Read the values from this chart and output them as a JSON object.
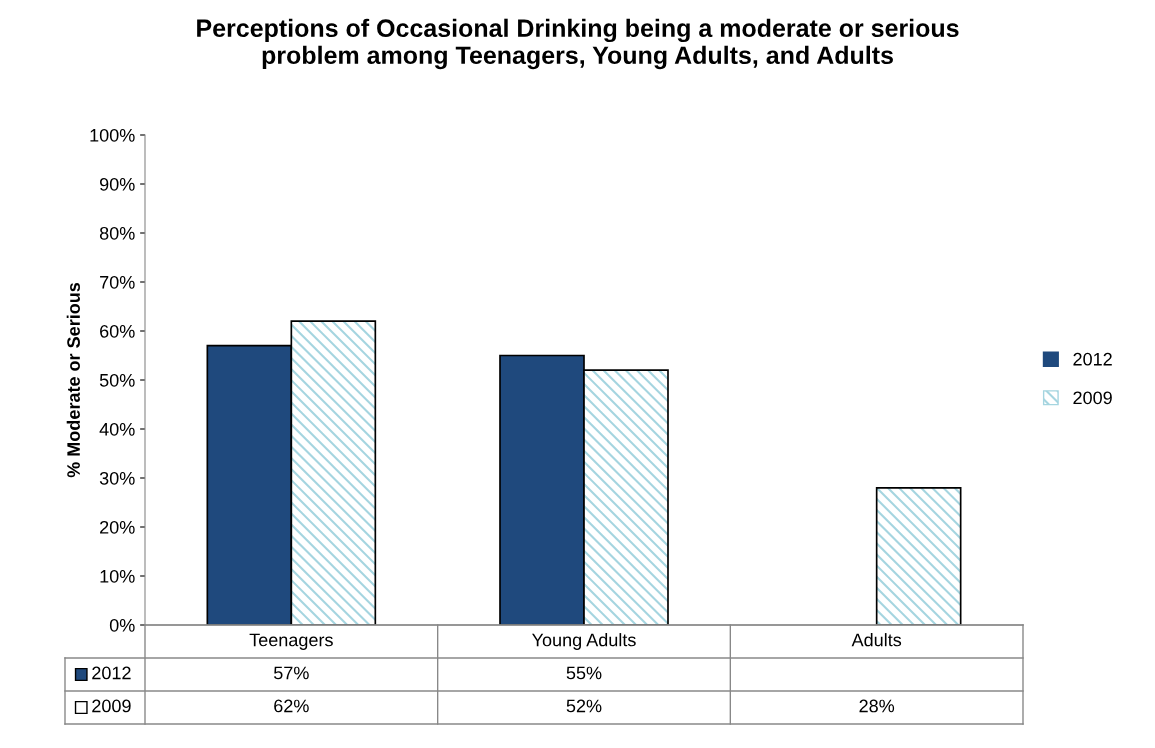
{
  "chart_data": {
    "type": "bar",
    "title": "Perceptions of Occasional Drinking being a moderate or serious\nproblem among Teenagers, Young Adults, and Adults",
    "ylabel": "% Moderate or Serious",
    "categories": [
      "Teenagers",
      "Young Adults",
      "Adults"
    ],
    "series": [
      {
        "name": "2012",
        "color": "#1f497d",
        "values": [
          57,
          55,
          null
        ],
        "value_labels": [
          "57%",
          "55%",
          null
        ]
      },
      {
        "name": "2009",
        "color": "#a5d5e0",
        "values": [
          62,
          52,
          28
        ],
        "value_labels": [
          "62%",
          "52%",
          "28%"
        ]
      }
    ],
    "ylim": [
      0,
      100
    ],
    "yticks": [
      {
        "value": 0,
        "label": "0%"
      },
      {
        "value": 10,
        "label": "10%"
      },
      {
        "value": 20,
        "label": "20%"
      },
      {
        "value": 30,
        "label": "30%"
      },
      {
        "value": 40,
        "label": "40%"
      },
      {
        "value": 50,
        "label": "50%"
      },
      {
        "value": 60,
        "label": "60%"
      },
      {
        "value": 70,
        "label": "70%"
      },
      {
        "value": 80,
        "label": "80%"
      },
      {
        "value": 90,
        "label": "90%"
      },
      {
        "value": 100,
        "label": "100%"
      }
    ],
    "grid": false,
    "legend": "right"
  }
}
